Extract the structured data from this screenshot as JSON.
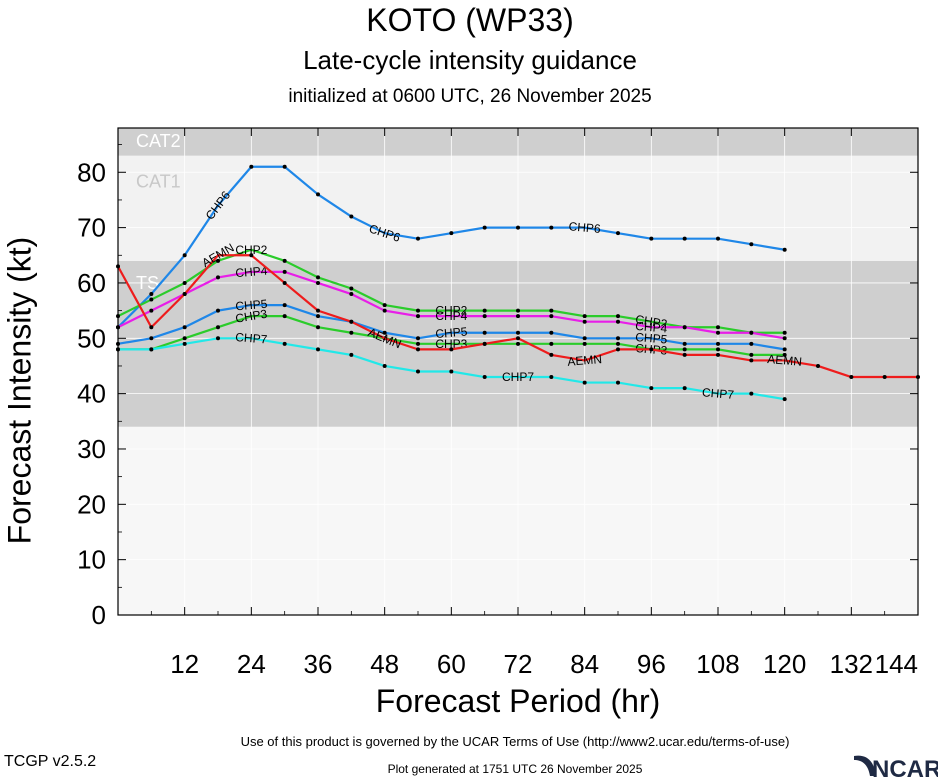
{
  "header": {
    "title": "KOTO (WP33)",
    "subtitle": "Late-cycle intensity guidance",
    "initialized": "initialized at 0600 UTC, 26 November 2025"
  },
  "footer": {
    "terms": "Use of this product is governed by the UCAR Terms of Use (http://www2.ucar.edu/terms-of-use)",
    "version": "TCGP v2.5.2",
    "generated": "Plot generated at 1751 UTC   26 November 2025",
    "logo": "NCAR"
  },
  "chart_data": {
    "type": "line",
    "title": "KOTO (WP33)",
    "xlabel": "Forecast Period (hr)",
    "ylabel": "Forecast Intensity (kt)",
    "xlim": [
      0,
      144
    ],
    "ylim": [
      0,
      88
    ],
    "xticks": [
      12,
      24,
      36,
      48,
      60,
      72,
      84,
      96,
      108,
      120,
      132,
      144
    ],
    "yticks": [
      0,
      10,
      20,
      30,
      40,
      50,
      60,
      70,
      80
    ],
    "grid": true,
    "legend": "none",
    "bands": [
      {
        "label": "TS",
        "from": 34,
        "to": 64,
        "color": "#cfcfcf"
      },
      {
        "label": "CAT1",
        "from": 64,
        "to": 83,
        "color": "#f2f2f2"
      },
      {
        "label": "CAT2",
        "from": 83,
        "to": 88,
        "color": "#cfcfcf"
      }
    ],
    "series": [
      {
        "name": "CHP6",
        "color": "#1f87e8",
        "label_at": [
          18,
          48,
          84
        ],
        "x": [
          0,
          6,
          12,
          18,
          24,
          30,
          36,
          42,
          48,
          54,
          60,
          66,
          72,
          78,
          84,
          90,
          96,
          102,
          108,
          114,
          120
        ],
        "y": [
          52,
          58,
          65,
          74,
          81,
          81,
          76,
          72,
          69,
          68,
          69,
          70,
          70,
          70,
          70,
          69,
          68,
          68,
          68,
          67,
          66
        ]
      },
      {
        "name": "CHP2",
        "color": "#2bcc2b",
        "label_at": [
          24,
          60,
          96
        ],
        "x": [
          0,
          6,
          12,
          18,
          24,
          30,
          36,
          42,
          48,
          54,
          60,
          66,
          72,
          78,
          84,
          90,
          96,
          102,
          108,
          114,
          120
        ],
        "y": [
          54,
          57,
          60,
          64,
          66,
          64,
          61,
          59,
          56,
          55,
          55,
          55,
          55,
          55,
          54,
          54,
          53,
          52,
          52,
          51,
          51
        ]
      },
      {
        "name": "CHP4",
        "color": "#e81ee8",
        "label_at": [
          24,
          60,
          96
        ],
        "x": [
          0,
          6,
          12,
          18,
          24,
          30,
          36,
          42,
          48,
          54,
          60,
          66,
          72,
          78,
          84,
          90,
          96,
          102,
          108,
          114,
          120
        ],
        "y": [
          52,
          55,
          58,
          61,
          62,
          62,
          60,
          58,
          55,
          54,
          54,
          54,
          54,
          54,
          53,
          53,
          52,
          52,
          51,
          51,
          50
        ]
      },
      {
        "name": "CHP5",
        "color": "#1f87e8",
        "label_at": [
          24,
          60,
          96
        ],
        "x": [
          0,
          6,
          12,
          18,
          24,
          30,
          36,
          42,
          48,
          54,
          60,
          66,
          72,
          78,
          84,
          90,
          96,
          102,
          108,
          114,
          120
        ],
        "y": [
          49,
          50,
          52,
          55,
          56,
          56,
          54,
          53,
          51,
          50,
          51,
          51,
          51,
          51,
          50,
          50,
          50,
          49,
          49,
          49,
          48
        ]
      },
      {
        "name": "CHP3",
        "color": "#2bcc2b",
        "label_at": [
          24,
          60,
          96
        ],
        "x": [
          0,
          6,
          12,
          18,
          24,
          30,
          36,
          42,
          48,
          54,
          60,
          66,
          72,
          78,
          84,
          90,
          96,
          102,
          108,
          114,
          120
        ],
        "y": [
          48,
          48,
          50,
          52,
          54,
          54,
          52,
          51,
          50,
          49,
          49,
          49,
          49,
          49,
          49,
          49,
          48,
          48,
          48,
          47,
          47
        ]
      },
      {
        "name": "CHP7",
        "color": "#22e8e8",
        "label_at": [
          24,
          72,
          108
        ],
        "x": [
          0,
          6,
          12,
          18,
          24,
          30,
          36,
          42,
          48,
          54,
          60,
          66,
          72,
          78,
          84,
          90,
          96,
          102,
          108,
          114,
          120
        ],
        "y": [
          48,
          48,
          49,
          50,
          50,
          49,
          48,
          47,
          45,
          44,
          44,
          43,
          43,
          43,
          42,
          42,
          41,
          41,
          40,
          40,
          39
        ]
      },
      {
        "name": "AEMN",
        "color": "#ee1c1c",
        "label_at": [
          18,
          48,
          84,
          120
        ],
        "x": [
          0,
          6,
          12,
          18,
          24,
          30,
          36,
          42,
          48,
          54,
          60,
          66,
          72,
          78,
          84,
          90,
          96,
          102,
          108,
          114,
          120,
          126,
          132,
          138,
          144
        ],
        "y": [
          63,
          52,
          58,
          65,
          65,
          60,
          55,
          53,
          50,
          48,
          48,
          49,
          50,
          47,
          46,
          48,
          48,
          47,
          47,
          46,
          46,
          45,
          43,
          43,
          43
        ]
      }
    ]
  }
}
